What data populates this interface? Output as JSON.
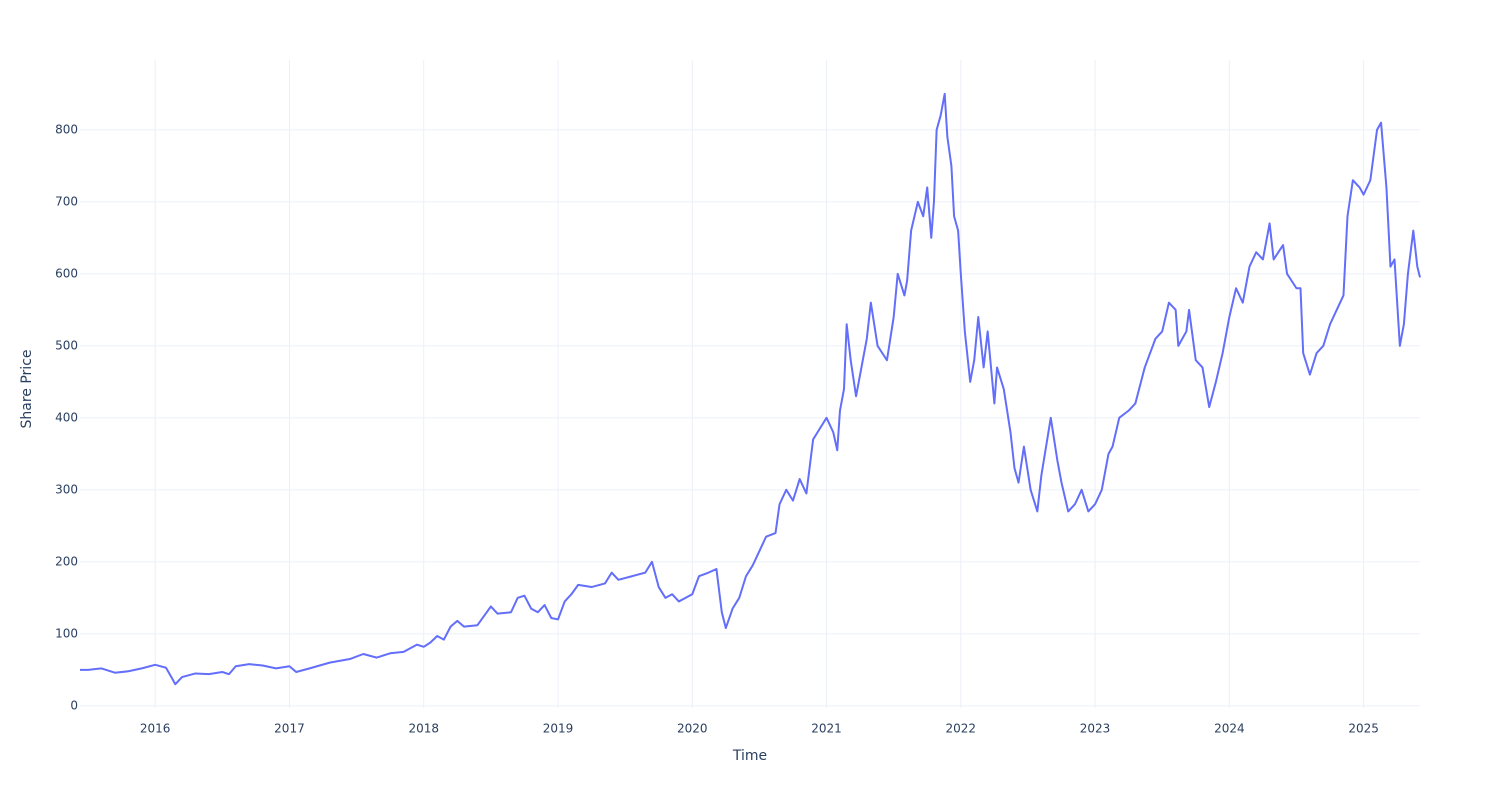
{
  "chart_data": {
    "type": "line",
    "x_label": "Time",
    "y_label": "Share Price",
    "x": [
      2015.44,
      2015.5,
      2015.6,
      2015.7,
      2015.8,
      2015.9,
      2016.0,
      2016.08,
      2016.12,
      2016.15,
      2016.2,
      2016.3,
      2016.4,
      2016.5,
      2016.55,
      2016.6,
      2016.7,
      2016.8,
      2016.9,
      2017.0,
      2017.05,
      2017.15,
      2017.3,
      2017.45,
      2017.55,
      2017.65,
      2017.75,
      2017.85,
      2017.95,
      2018.0,
      2018.05,
      2018.1,
      2018.15,
      2018.2,
      2018.25,
      2018.3,
      2018.4,
      2018.45,
      2018.5,
      2018.55,
      2018.65,
      2018.7,
      2018.75,
      2018.8,
      2018.85,
      2018.9,
      2018.95,
      2019.0,
      2019.05,
      2019.1,
      2019.15,
      2019.25,
      2019.35,
      2019.4,
      2019.45,
      2019.55,
      2019.65,
      2019.7,
      2019.75,
      2019.8,
      2019.85,
      2019.9,
      2020.0,
      2020.05,
      2020.12,
      2020.18,
      2020.22,
      2020.25,
      2020.3,
      2020.35,
      2020.4,
      2020.45,
      2020.5,
      2020.55,
      2020.62,
      2020.65,
      2020.7,
      2020.75,
      2020.8,
      2020.85,
      2020.9,
      2020.95,
      2021.0,
      2021.05,
      2021.08,
      2021.1,
      2021.13,
      2021.15,
      2021.18,
      2021.22,
      2021.27,
      2021.3,
      2021.33,
      2021.38,
      2021.45,
      2021.5,
      2021.53,
      2021.58,
      2021.6,
      2021.63,
      2021.68,
      2021.72,
      2021.75,
      2021.78,
      2021.8,
      2021.82,
      2021.85,
      2021.88,
      2021.9,
      2021.93,
      2021.95,
      2021.98,
      2022.0,
      2022.03,
      2022.07,
      2022.1,
      2022.13,
      2022.17,
      2022.2,
      2022.25,
      2022.27,
      2022.32,
      2022.37,
      2022.4,
      2022.43,
      2022.47,
      2022.52,
      2022.57,
      2022.6,
      2022.67,
      2022.72,
      2022.75,
      2022.8,
      2022.85,
      2022.9,
      2022.95,
      2023.0,
      2023.05,
      2023.1,
      2023.13,
      2023.18,
      2023.25,
      2023.3,
      2023.37,
      2023.45,
      2023.5,
      2023.55,
      2023.6,
      2023.62,
      2023.68,
      2023.7,
      2023.75,
      2023.8,
      2023.85,
      2023.9,
      2023.95,
      2024.0,
      2024.05,
      2024.1,
      2024.15,
      2024.2,
      2024.25,
      2024.3,
      2024.33,
      2024.4,
      2024.43,
      2024.5,
      2024.53,
      2024.55,
      2024.6,
      2024.65,
      2024.7,
      2024.75,
      2024.8,
      2024.85,
      2024.88,
      2024.92,
      2024.97,
      2025.0,
      2025.05,
      2025.1,
      2025.13,
      2025.17,
      2025.2,
      2025.23,
      2025.27,
      2025.3,
      2025.33,
      2025.37,
      2025.4,
      2025.42
    ],
    "series": [
      {
        "name": "Share Price",
        "color": "#636efa",
        "values": [
          50,
          50,
          52,
          46,
          48,
          52,
          57,
          53,
          40,
          30,
          40,
          45,
          44,
          47,
          44,
          55,
          58,
          56,
          52,
          55,
          47,
          52,
          60,
          65,
          72,
          67,
          73,
          75,
          85,
          82,
          88,
          97,
          92,
          110,
          118,
          110,
          112,
          125,
          138,
          128,
          130,
          150,
          153,
          135,
          130,
          140,
          122,
          120,
          145,
          155,
          168,
          165,
          170,
          185,
          175,
          180,
          185,
          200,
          165,
          150,
          155,
          145,
          155,
          180,
          185,
          190,
          130,
          108,
          135,
          150,
          180,
          195,
          215,
          235,
          240,
          280,
          300,
          285,
          315,
          295,
          370,
          385,
          400,
          380,
          355,
          410,
          440,
          530,
          480,
          430,
          480,
          510,
          560,
          500,
          480,
          540,
          600,
          570,
          590,
          660,
          700,
          680,
          720,
          650,
          700,
          800,
          820,
          850,
          790,
          750,
          680,
          660,
          600,
          520,
          450,
          480,
          540,
          470,
          520,
          420,
          470,
          440,
          380,
          330,
          310,
          360,
          300,
          270,
          320,
          400,
          340,
          310,
          270,
          280,
          300,
          270,
          280,
          300,
          350,
          360,
          400,
          410,
          420,
          470,
          510,
          520,
          560,
          550,
          500,
          520,
          550,
          480,
          470,
          415,
          450,
          490,
          540,
          580,
          560,
          610,
          630,
          620,
          670,
          620,
          640,
          600,
          580,
          580,
          490,
          460,
          490,
          500,
          530,
          550,
          570,
          680,
          730,
          720,
          710,
          730,
          800,
          810,
          720,
          610,
          620,
          500,
          530,
          600,
          660,
          610,
          595
        ]
      }
    ],
    "xlim": [
      2015.44,
      2025.42
    ],
    "xticks": [
      2016,
      2017,
      2018,
      2019,
      2020,
      2021,
      2022,
      2023,
      2024,
      2025
    ],
    "ylim": [
      -3,
      897
    ],
    "yticks": [
      0,
      100,
      200,
      300,
      400,
      500,
      600,
      700,
      800
    ],
    "grid": true
  }
}
